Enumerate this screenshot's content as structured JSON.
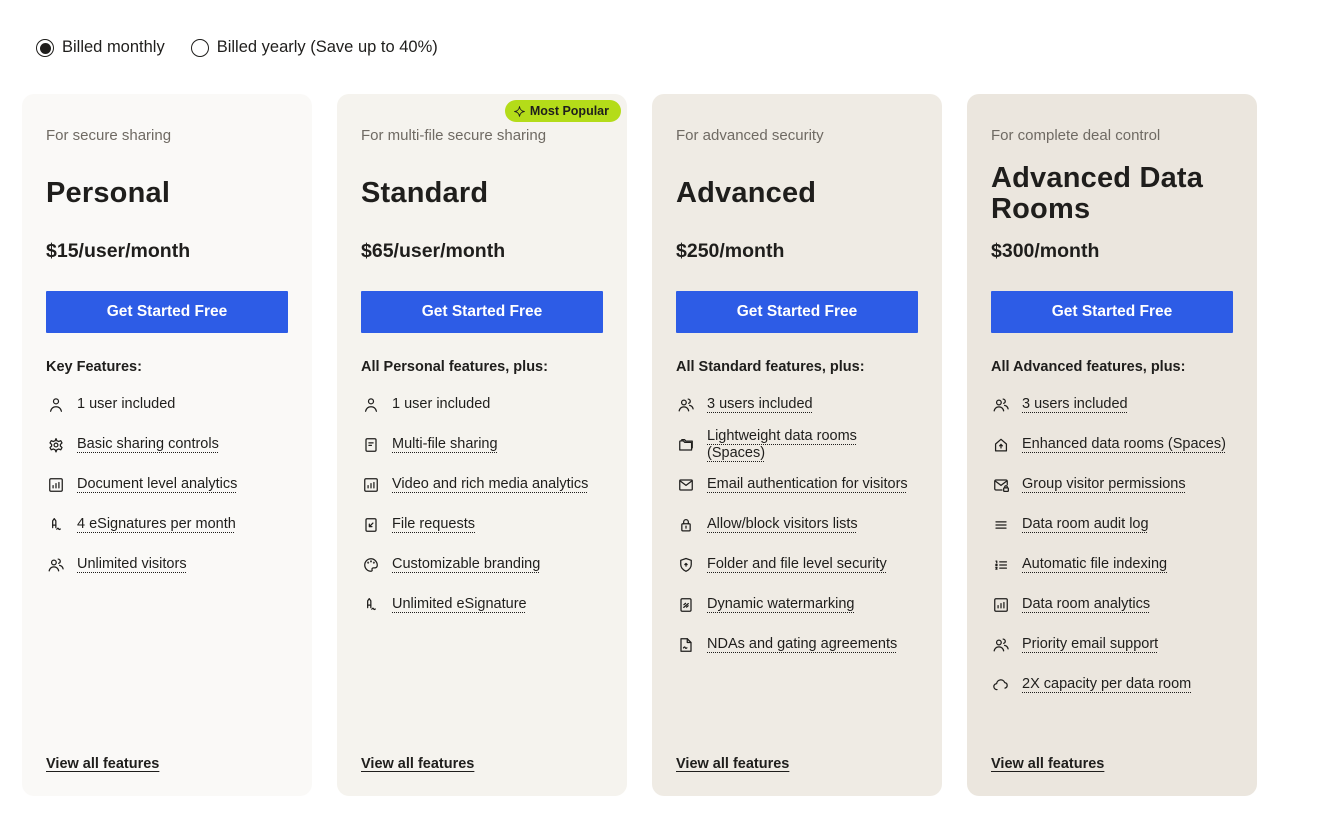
{
  "billing_toggle": {
    "options": [
      {
        "label": "Billed monthly",
        "selected": true
      },
      {
        "label": "Billed yearly (Save up to 40%)",
        "selected": false
      }
    ]
  },
  "colors": {
    "button_blue": "#2d5ce6",
    "badge_green": "#b4dc19",
    "text_dark": "#1f1e1c",
    "text_muted": "#6f6a63",
    "card_backgrounds": [
      "#faf9f7",
      "#f5f3ee",
      "#efebe4",
      "#ebe6de"
    ]
  },
  "cards": [
    {
      "tagline": "For secure sharing",
      "title": "Personal",
      "price": "$15/user/month",
      "cta_label": "Get Started Free",
      "features_heading": "Key Features:",
      "view_all_label": "View all features",
      "features": [
        {
          "icon": "user",
          "label": "1 user included",
          "underlined": false
        },
        {
          "icon": "gear",
          "label": "Basic sharing controls",
          "underlined": true
        },
        {
          "icon": "chart",
          "label": "Document level analytics",
          "underlined": true
        },
        {
          "icon": "esignature",
          "label": "4 eSignatures per month",
          "underlined": true
        },
        {
          "icon": "users",
          "label": "Unlimited visitors",
          "underlined": true
        }
      ]
    },
    {
      "badge": {
        "icon": "sparkle",
        "label": "Most Popular"
      },
      "tagline": "For multi-file secure sharing",
      "title": "Standard",
      "price": "$65/user/month",
      "cta_label": "Get Started Free",
      "features_heading": "All Personal features, plus:",
      "view_all_label": "View all features",
      "features": [
        {
          "icon": "user",
          "label": "1 user included",
          "underlined": false
        },
        {
          "icon": "doc",
          "label": "Multi-file sharing",
          "underlined": true
        },
        {
          "icon": "chart",
          "label": "Video and rich media analytics",
          "underlined": true
        },
        {
          "icon": "doc-arrow",
          "label": "File requests",
          "underlined": true
        },
        {
          "icon": "palette",
          "label": "Customizable branding",
          "underlined": true
        },
        {
          "icon": "esignature",
          "label": "Unlimited eSignature",
          "underlined": true
        }
      ]
    },
    {
      "tagline": "For advanced security",
      "title": "Advanced",
      "price": "$250/month",
      "cta_label": "Get Started Free",
      "features_heading": "All Standard features, plus:",
      "view_all_label": "View all features",
      "features": [
        {
          "icon": "users",
          "label": "3 users included",
          "underlined": true
        },
        {
          "icon": "folder",
          "label": "Lightweight data rooms (Spaces)",
          "underlined": true
        },
        {
          "icon": "mail",
          "label": "Email authentication for visitors",
          "underlined": true
        },
        {
          "icon": "lock",
          "label": "Allow/block visitors lists",
          "underlined": true
        },
        {
          "icon": "shield",
          "label": "Folder and file level security",
          "underlined": true
        },
        {
          "icon": "doc-watermark",
          "label": "Dynamic watermarking",
          "underlined": true
        },
        {
          "icon": "doc-sign",
          "label": "NDAs and gating agreements",
          "underlined": true
        }
      ]
    },
    {
      "tagline": "For complete deal control",
      "title": "Advanced Data Rooms",
      "price": "$300/month",
      "cta_label": "Get Started Free",
      "features_heading": "All Advanced features, plus:",
      "view_all_label": "View all features",
      "features": [
        {
          "icon": "users",
          "label": "3 users included",
          "underlined": true
        },
        {
          "icon": "home-up",
          "label": "Enhanced data rooms (Spaces)",
          "underlined": true
        },
        {
          "icon": "mail-lock",
          "label": "Group visitor permissions",
          "underlined": true
        },
        {
          "icon": "lines",
          "label": "Data room audit log",
          "underlined": true
        },
        {
          "icon": "list-ordered",
          "label": "Automatic file indexing",
          "underlined": true
        },
        {
          "icon": "chart",
          "label": "Data room analytics",
          "underlined": true
        },
        {
          "icon": "users",
          "label": "Priority email support",
          "underlined": true
        },
        {
          "icon": "cloud",
          "label": "2X capacity per data room",
          "underlined": true
        }
      ]
    }
  ]
}
